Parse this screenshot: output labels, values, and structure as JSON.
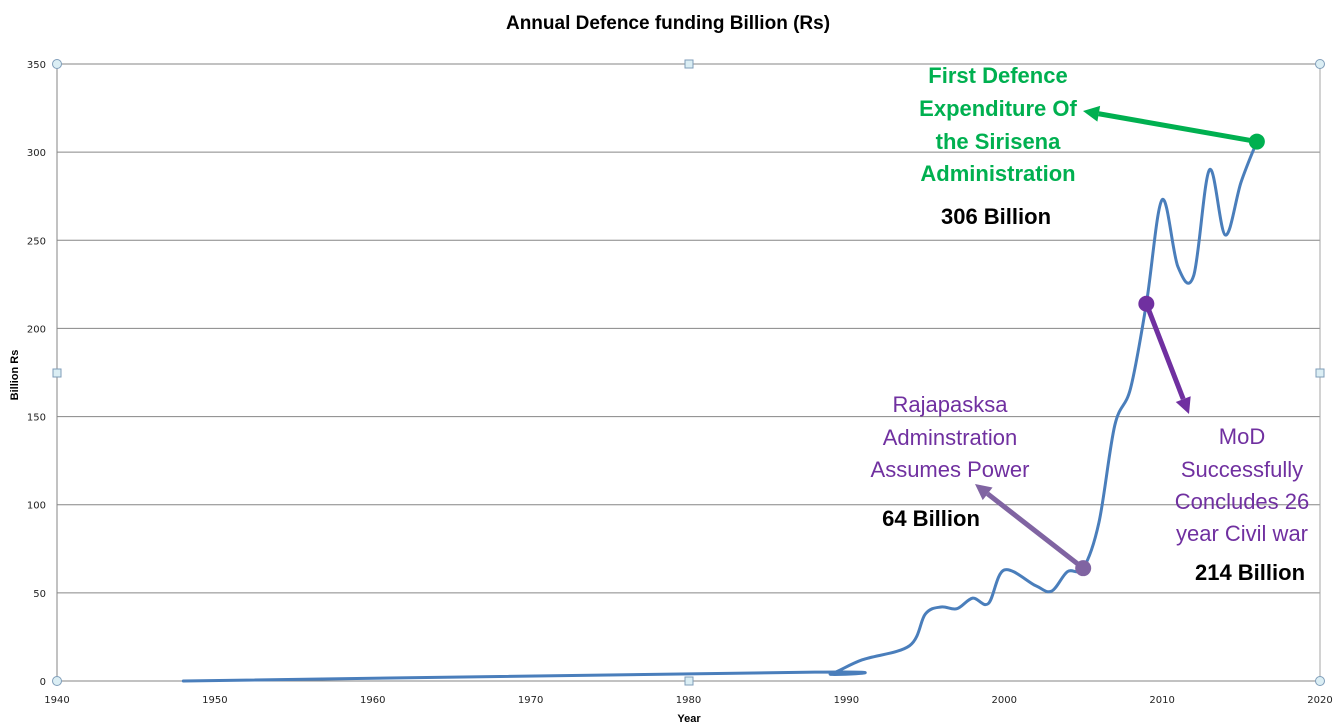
{
  "chart_data": {
    "type": "line",
    "title": "Annual Defence funding Billion (Rs)",
    "xlabel": "Year",
    "ylabel": "Billion Rs",
    "xlim": [
      1940,
      2020
    ],
    "ylim": [
      0,
      350
    ],
    "x_ticks": [
      1940,
      1950,
      1960,
      1970,
      1980,
      1990,
      2000,
      2010,
      2020
    ],
    "y_ticks": [
      0,
      50,
      100,
      150,
      200,
      250,
      300,
      350
    ],
    "grid": "horizontal",
    "legend": "none",
    "series": [
      {
        "name": "Defence funding",
        "color": "#4a7ebb",
        "smooth": true,
        "x": [
          1948,
          1988,
          1989,
          1991,
          1994,
          1995,
          1996,
          1997,
          1998,
          1999,
          2000,
          2002,
          2003,
          2004,
          2005,
          2006,
          2007,
          2008,
          2009,
          2010,
          2011,
          2012,
          2013,
          2014,
          2015,
          2016
        ],
        "values": [
          0,
          5,
          4,
          12,
          20,
          38,
          42,
          41,
          47,
          44,
          63,
          54,
          51,
          62,
          64,
          90,
          145,
          166,
          214,
          273,
          235,
          230,
          290,
          253,
          283,
          306
        ]
      }
    ],
    "annotations": [
      {
        "id": "sirisena",
        "point": {
          "x": 2016,
          "y": 306
        },
        "marker_color": "#00b050",
        "text_color": "#00b050",
        "lines": [
          "First Defence",
          "Expenditure Of",
          "the Sirisena",
          "Administration"
        ],
        "value_label": "306 Billion"
      },
      {
        "id": "rajapaksa",
        "point": {
          "x": 2005,
          "y": 64
        },
        "marker_color": "#8064a2",
        "text_color": "#7030a0",
        "lines": [
          "Rajapasksa",
          "Adminstration",
          "Assumes Power"
        ],
        "value_label": "64 Billion"
      },
      {
        "id": "civil-war",
        "point": {
          "x": 2009,
          "y": 214
        },
        "marker_color": "#7030a0",
        "text_color": "#7030a0",
        "lines": [
          "MoD",
          "Successfully",
          "Concludes 26",
          "year Civil war"
        ],
        "value_label": "214 Billion"
      }
    ]
  }
}
